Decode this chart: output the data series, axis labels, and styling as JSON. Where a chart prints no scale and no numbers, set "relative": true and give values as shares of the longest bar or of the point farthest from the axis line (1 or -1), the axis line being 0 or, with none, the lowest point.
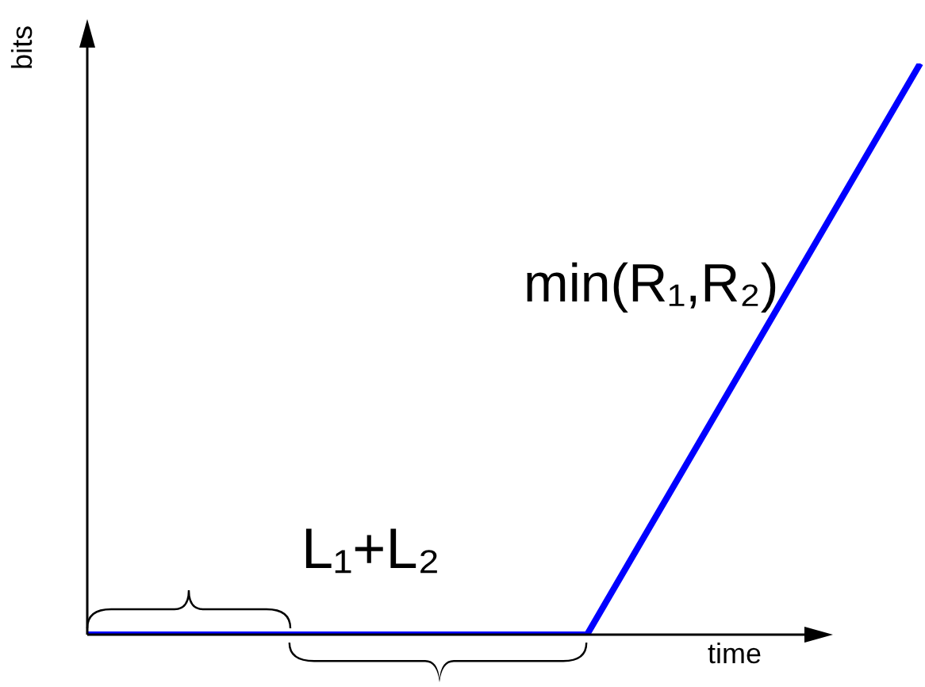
{
  "chart_data": {
    "type": "line",
    "relative": true,
    "categories": [
      null,
      null,
      null,
      null,
      null,
      null
    ],
    "series": [
      {
        "color": "#0000ff",
        "values": [
          0,
          0,
          0,
          0,
          0.5,
          1
        ]
      }
    ],
    "xlabel": "time",
    "ylabel": "bits",
    "marker": "none",
    "annotations": [
      "min(R₁,R₂)",
      "L₁+L₂"
    ]
  }
}
